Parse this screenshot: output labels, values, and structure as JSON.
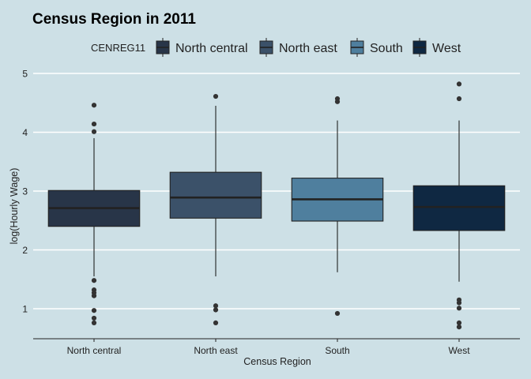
{
  "chart_data": {
    "type": "box",
    "title": "Census Region in 2011",
    "xlabel": "Census Region",
    "ylabel": "log(Hourly Wage)",
    "ylim": [
      0.5,
      5.2
    ],
    "yticks": [
      1,
      2,
      3,
      4,
      5
    ],
    "grid": "horizontal major lines",
    "legend": {
      "title": "CENREG11",
      "position": "top",
      "entries": [
        "North central",
        "North east",
        "South",
        "West"
      ]
    },
    "categories": [
      "North central",
      "North east",
      "South",
      "West"
    ],
    "colors": {
      "background": "#cde0e6",
      "North central": "#283548",
      "North east": "#3b5169",
      "South": "#4f7f9e",
      "West": "#0f2842",
      "grid": "#ffffff",
      "outline": "#222222"
    },
    "boxes": [
      {
        "name": "North central",
        "whisker_low": 1.55,
        "q1": 2.4,
        "median": 2.71,
        "q3": 3.01,
        "whisker_high": 3.9,
        "outliers": [
          4.46,
          4.14,
          4.01,
          1.48,
          1.32,
          1.27,
          1.22,
          0.97,
          0.84,
          0.76
        ]
      },
      {
        "name": "North east",
        "whisker_low": 1.55,
        "q1": 2.54,
        "median": 2.89,
        "q3": 3.32,
        "whisker_high": 4.45,
        "outliers": [
          4.61,
          1.05,
          0.98,
          0.76
        ]
      },
      {
        "name": "South",
        "whisker_low": 1.62,
        "q1": 2.49,
        "median": 2.86,
        "q3": 3.22,
        "whisker_high": 4.2,
        "outliers": [
          4.57,
          4.52,
          0.92
        ]
      },
      {
        "name": "West",
        "whisker_low": 1.46,
        "q1": 2.33,
        "median": 2.73,
        "q3": 3.09,
        "whisker_high": 4.2,
        "outliers": [
          4.82,
          4.57,
          1.15,
          1.1,
          1.01,
          0.76,
          0.69
        ]
      }
    ]
  }
}
